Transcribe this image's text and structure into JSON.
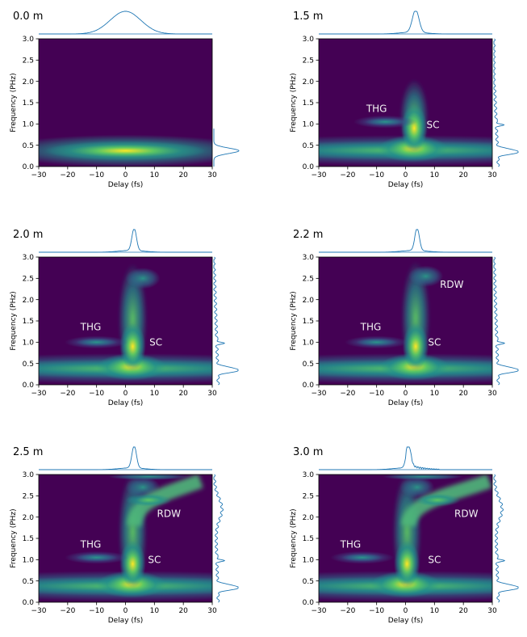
{
  "chart_data": [
    {
      "type": "heatmap",
      "title": "0.0 m",
      "xlabel": "Delay (fs)",
      "ylabel": "Frequency (PHz)",
      "xlim": [
        -30,
        30
      ],
      "ylim": [
        0,
        3.0
      ],
      "xticks": [
        "−30",
        "−20",
        "−10",
        "0",
        "10",
        "20",
        "30"
      ],
      "yticks": [
        "0.0",
        "0.5",
        "1.0",
        "1.5",
        "2.0",
        "2.5",
        "3.0"
      ],
      "annotations": [],
      "features": {
        "main_pulse": {
          "center_delay": 0,
          "center_freq": 0.37,
          "extent_delay": 20,
          "extent_freq": 0.16
        }
      }
    },
    {
      "type": "heatmap",
      "title": "1.5 m",
      "xlabel": "Delay (fs)",
      "ylabel": "Frequency (PHz)",
      "xlim": [
        -30,
        30
      ],
      "ylim": [
        0,
        3.0
      ],
      "xticks": [
        "−30",
        "−20",
        "−10",
        "0",
        "10",
        "20",
        "30"
      ],
      "yticks": [
        "0.0",
        "0.5",
        "1.0",
        "1.5",
        "2.0",
        "2.5",
        "3.0"
      ],
      "annotations": [
        {
          "text": "THG",
          "x": -10,
          "y": 1.28
        },
        {
          "text": "SC",
          "x": 9.5,
          "y": 0.9
        }
      ],
      "features": {
        "main_pulse": {
          "center_delay": 2.5,
          "center_freq": 0.37
        },
        "supercontinuum_max_freq": 1.9,
        "thg_center": [
          -7,
          1.05
        ]
      }
    },
    {
      "type": "heatmap",
      "title": "2.0 m",
      "xlabel": "Delay (fs)",
      "ylabel": "Frequency (PHz)",
      "xlim": [
        -30,
        30
      ],
      "ylim": [
        0,
        3.0
      ],
      "xticks": [
        "−30",
        "−20",
        "−10",
        "0",
        "10",
        "20",
        "30"
      ],
      "yticks": [
        "0.0",
        "0.5",
        "1.0",
        "1.5",
        "2.0",
        "2.5",
        "3.0"
      ],
      "annotations": [
        {
          "text": "THG",
          "x": -12,
          "y": 1.28
        },
        {
          "text": "SC",
          "x": 10.5,
          "y": 0.92
        }
      ],
      "features": {
        "main_pulse": {
          "center_delay": 2,
          "center_freq": 0.4
        },
        "supercontinuum_max_freq": 2.7,
        "thg_center": [
          -10,
          1.0
        ]
      }
    },
    {
      "type": "heatmap",
      "title": "2.2 m",
      "xlabel": "Delay (fs)",
      "ylabel": "Frequency (PHz)",
      "xlim": [
        -30,
        30
      ],
      "ylim": [
        0,
        3.0
      ],
      "xticks": [
        "−30",
        "−20",
        "−10",
        "0",
        "10",
        "20",
        "30"
      ],
      "yticks": [
        "0.0",
        "0.5",
        "1.0",
        "1.5",
        "2.0",
        "2.5",
        "3.0"
      ],
      "annotations": [
        {
          "text": "RDW",
          "x": 16,
          "y": 2.28
        },
        {
          "text": "THG",
          "x": -12,
          "y": 1.28
        },
        {
          "text": "SC",
          "x": 10,
          "y": 0.92
        }
      ],
      "features": {
        "main_pulse": {
          "center_delay": 3,
          "center_freq": 0.4
        },
        "supercontinuum_max_freq": 2.75,
        "thg_center": [
          -10,
          1.0
        ]
      }
    },
    {
      "type": "heatmap",
      "title": "2.5 m",
      "xlabel": "Delay (fs)",
      "ylabel": "Frequency (PHz)",
      "xlim": [
        -30,
        30
      ],
      "ylim": [
        0,
        3.0
      ],
      "xticks": [
        "−30",
        "−20",
        "−10",
        "0",
        "10",
        "20",
        "30"
      ],
      "yticks": [
        "0.0",
        "0.5",
        "1.0",
        "1.5",
        "2.0",
        "2.5",
        "3.0"
      ],
      "annotations": [
        {
          "text": "RDW",
          "x": 15,
          "y": 2.0
        },
        {
          "text": "THG",
          "x": -12,
          "y": 1.28
        },
        {
          "text": "SC",
          "x": 10,
          "y": 0.92
        }
      ],
      "features": {
        "main_pulse": {
          "center_delay": 2,
          "center_freq": 0.45
        },
        "supercontinuum_max_freq": 2.9,
        "thg_center": [
          -10,
          1.05
        ],
        "rdw_center": [
          12,
          2.4
        ]
      }
    },
    {
      "type": "heatmap",
      "title": "3.0 m",
      "xlabel": "Delay (fs)",
      "ylabel": "Frequency (PHz)",
      "xlim": [
        -30,
        30
      ],
      "ylim": [
        0,
        3.0
      ],
      "xticks": [
        "−30",
        "−20",
        "−10",
        "0",
        "10",
        "20",
        "30"
      ],
      "yticks": [
        "0.0",
        "0.5",
        "1.0",
        "1.5",
        "2.0",
        "2.5",
        "3.0"
      ],
      "annotations": [
        {
          "text": "RDW",
          "x": 21,
          "y": 2.0
        },
        {
          "text": "THG",
          "x": -19,
          "y": 1.28
        },
        {
          "text": "SC",
          "x": 10,
          "y": 0.92
        }
      ],
      "features": {
        "main_pulse": {
          "center_delay": 0,
          "center_freq": 0.45
        },
        "supercontinuum_max_freq": 2.9,
        "thg_center": [
          -15,
          1.05
        ],
        "rdw_center": [
          15,
          2.4
        ]
      }
    }
  ],
  "colors": {
    "background": "#440154",
    "mid": "#21918c",
    "high": "#5ec962",
    "peak": "#fde725",
    "line": "#1f77b4"
  }
}
